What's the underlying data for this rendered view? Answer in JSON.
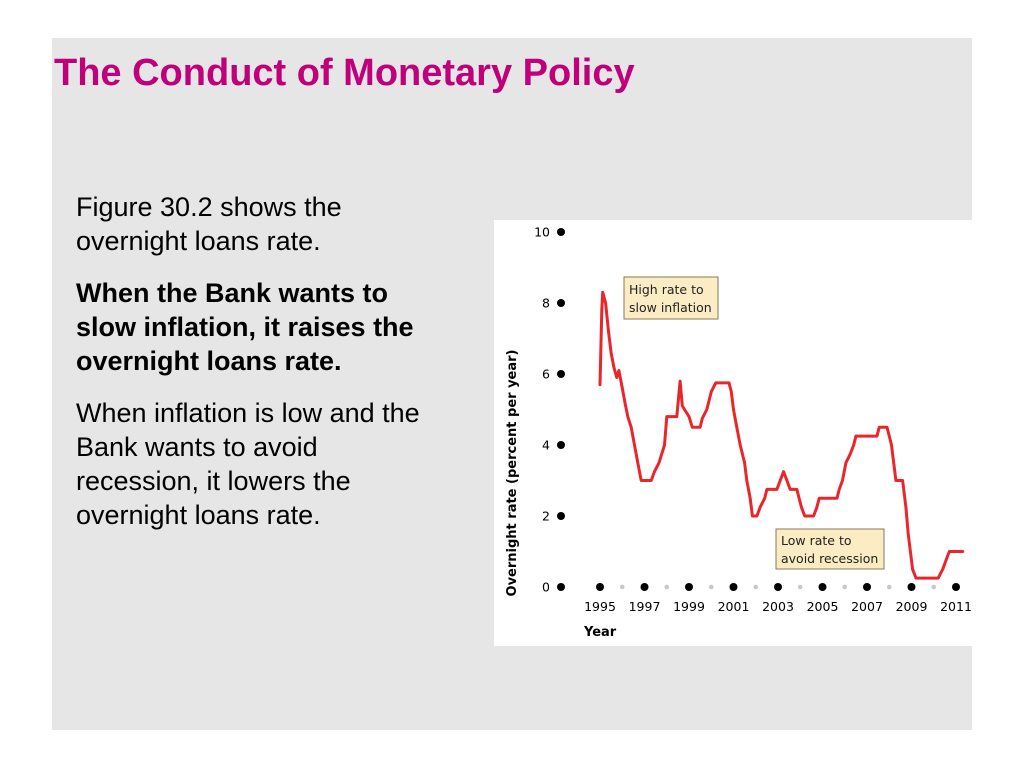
{
  "slide": {
    "title": "The Conduct of Monetary Policy",
    "paragraphs": [
      {
        "text": "Figure 30.2 shows the overnight loans rate.",
        "bold": false
      },
      {
        "text": "When the Bank wants to slow inflation, it raises the overnight loans rate.",
        "bold": true
      },
      {
        "text": "When inflation is low and the Bank wants to avoid recession, it lowers the overnight loans rate.",
        "bold": false
      }
    ]
  },
  "colors": {
    "title": "#c0007a",
    "line": "#e8262b",
    "annotation_fill": "#fbecc3",
    "annotation_border": "#8a7a55",
    "slide_background": "#e6e6e6"
  },
  "chart_data": {
    "type": "line",
    "ylabel": "Overnight rate (percent per year)",
    "xlabel": "Year",
    "ylim": [
      0,
      10
    ],
    "xlim": [
      1995,
      2011
    ],
    "y_ticks": [
      0,
      2,
      4,
      6,
      8,
      10
    ],
    "x_ticks": [
      1995,
      1997,
      1999,
      2001,
      2003,
      2005,
      2007,
      2009,
      2011
    ],
    "grid": false,
    "annotations": [
      {
        "text_lines": [
          "High rate to",
          "slow inflation"
        ]
      },
      {
        "text_lines": [
          "Low rate to",
          "avoid recession"
        ]
      }
    ],
    "series": [
      {
        "values": [
          [
            1995.0,
            5.7
          ],
          [
            1995.08,
            7.8
          ],
          [
            1995.12,
            8.3
          ],
          [
            1995.25,
            8.0
          ],
          [
            1995.38,
            7.2
          ],
          [
            1995.5,
            6.6
          ],
          [
            1995.62,
            6.2
          ],
          [
            1995.75,
            5.9
          ],
          [
            1995.85,
            6.1
          ],
          [
            1996.0,
            5.6
          ],
          [
            1996.12,
            5.2
          ],
          [
            1996.25,
            4.8
          ],
          [
            1996.4,
            4.5
          ],
          [
            1996.55,
            4.0
          ],
          [
            1996.7,
            3.5
          ],
          [
            1996.85,
            3.0
          ],
          [
            1997.3,
            3.0
          ],
          [
            1997.45,
            3.25
          ],
          [
            1997.65,
            3.5
          ],
          [
            1997.9,
            4.0
          ],
          [
            1998.0,
            4.8
          ],
          [
            1998.45,
            4.8
          ],
          [
            1998.6,
            5.8
          ],
          [
            1998.7,
            5.1
          ],
          [
            1998.8,
            5.0
          ],
          [
            1999.0,
            4.8
          ],
          [
            1999.15,
            4.5
          ],
          [
            1999.5,
            4.5
          ],
          [
            1999.6,
            4.75
          ],
          [
            1999.8,
            5.0
          ],
          [
            2000.0,
            5.5
          ],
          [
            2000.2,
            5.75
          ],
          [
            2000.8,
            5.75
          ],
          [
            2000.9,
            5.5
          ],
          [
            2001.0,
            5.0
          ],
          [
            2001.15,
            4.5
          ],
          [
            2001.3,
            4.0
          ],
          [
            2001.5,
            3.5
          ],
          [
            2001.6,
            3.0
          ],
          [
            2001.75,
            2.5
          ],
          [
            2001.85,
            2.0
          ],
          [
            2002.05,
            2.0
          ],
          [
            2002.2,
            2.25
          ],
          [
            2002.4,
            2.5
          ],
          [
            2002.5,
            2.75
          ],
          [
            2002.95,
            2.75
          ],
          [
            2003.1,
            3.0
          ],
          [
            2003.25,
            3.25
          ],
          [
            2003.4,
            3.0
          ],
          [
            2003.55,
            2.75
          ],
          [
            2003.85,
            2.75
          ],
          [
            2003.95,
            2.5
          ],
          [
            2004.05,
            2.25
          ],
          [
            2004.2,
            2.0
          ],
          [
            2004.6,
            2.0
          ],
          [
            2004.75,
            2.25
          ],
          [
            2004.85,
            2.5
          ],
          [
            2005.65,
            2.5
          ],
          [
            2005.75,
            2.75
          ],
          [
            2005.9,
            3.0
          ],
          [
            2006.05,
            3.5
          ],
          [
            2006.25,
            3.75
          ],
          [
            2006.4,
            4.0
          ],
          [
            2006.5,
            4.25
          ],
          [
            2007.45,
            4.25
          ],
          [
            2007.55,
            4.5
          ],
          [
            2007.9,
            4.5
          ],
          [
            2008.0,
            4.25
          ],
          [
            2008.1,
            4.0
          ],
          [
            2008.2,
            3.5
          ],
          [
            2008.3,
            3.0
          ],
          [
            2008.6,
            3.0
          ],
          [
            2008.75,
            2.25
          ],
          [
            2008.85,
            1.5
          ],
          [
            2008.95,
            1.0
          ],
          [
            2009.05,
            0.5
          ],
          [
            2009.2,
            0.25
          ],
          [
            2010.2,
            0.25
          ],
          [
            2010.4,
            0.5
          ],
          [
            2010.55,
            0.75
          ],
          [
            2010.7,
            1.0
          ],
          [
            2011.3,
            1.0
          ]
        ]
      }
    ]
  }
}
